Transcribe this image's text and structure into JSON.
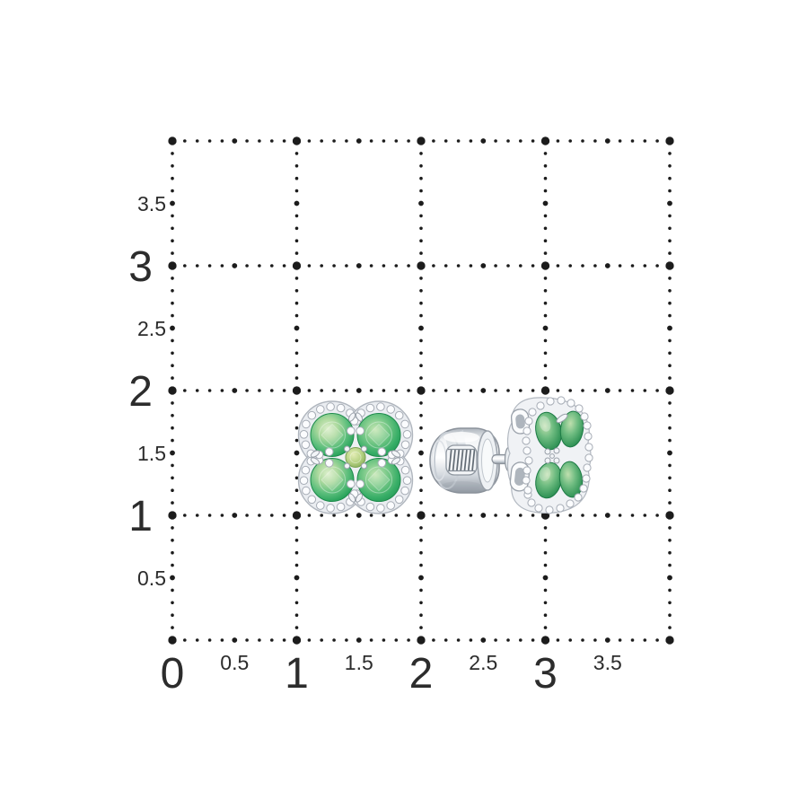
{
  "page": {
    "background": "#ffffff",
    "description": "Pair of clover-shaped emerald and diamond stud earrings shown on a centimeter measurement grid; left earring front view, right earring side view with screw-back"
  },
  "measurement_grid": {
    "dot_color": "#1c1c1c",
    "label_color": "#2c2c2c",
    "x_axis_labels": [
      {
        "text": "0",
        "unit": 0
      },
      {
        "text": "0.5",
        "unit": 0.5
      },
      {
        "text": "1",
        "unit": 1
      },
      {
        "text": "1.5",
        "unit": 1.5
      },
      {
        "text": "2",
        "unit": 2
      },
      {
        "text": "2.5",
        "unit": 2.5
      },
      {
        "text": "3",
        "unit": 3
      },
      {
        "text": "3.5",
        "unit": 3.5
      }
    ],
    "y_axis_labels": [
      {
        "text": "0.5",
        "unit": 0.5
      },
      {
        "text": "1",
        "unit": 1
      },
      {
        "text": "1.5",
        "unit": 1.5
      },
      {
        "text": "2",
        "unit": 2
      },
      {
        "text": "2.5",
        "unit": 2.5
      },
      {
        "text": "3",
        "unit": 3
      },
      {
        "text": "3.5",
        "unit": 3.5
      }
    ]
  },
  "product": {
    "items": [
      {
        "name": "clover-stud-earring-front-view"
      },
      {
        "name": "clover-stud-earring-side-view-with-screw-back"
      }
    ],
    "colors": {
      "emerald_light": "#a6d79c",
      "emerald_mid": "#3bb069",
      "emerald_dark": "#1f8f4e",
      "center_stone": "#9cbd6b",
      "diamond_fill": "#fbfcfe",
      "diamond_edge": "#a7adb6",
      "metal_light": "#f4f6f8",
      "metal_mid": "#c6ccd3",
      "metal_dark": "#8b929b"
    }
  }
}
